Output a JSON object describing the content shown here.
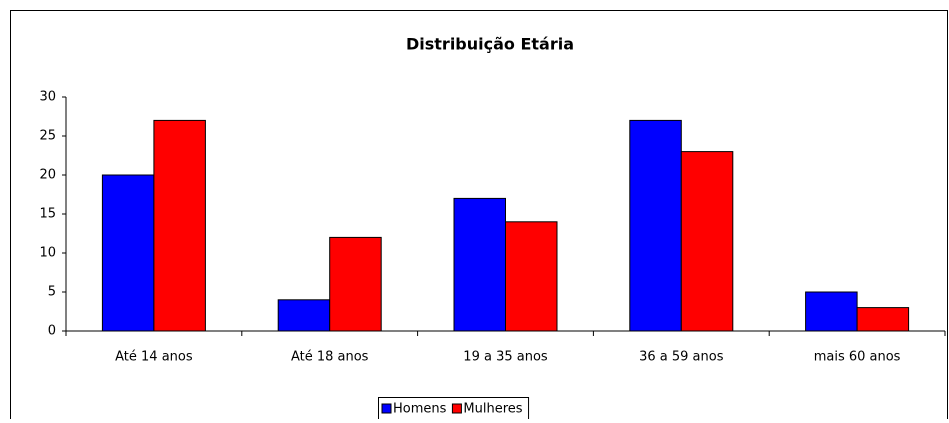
{
  "chart_data": {
    "type": "bar",
    "title": "Distribuição Etária",
    "categories": [
      "Até 14 anos",
      "Até 18 anos",
      "19 a 35 anos",
      "36 a 59 anos",
      "mais 60 anos"
    ],
    "series": [
      {
        "name": "Homens",
        "color": "#0000ff",
        "values": [
          20,
          4,
          17,
          27,
          5
        ]
      },
      {
        "name": "Mulheres",
        "color": "#ff0000",
        "values": [
          27,
          12,
          14,
          23,
          3
        ]
      }
    ],
    "ylim": [
      0,
      30
    ],
    "yticks": [
      0,
      5,
      10,
      15,
      20,
      25,
      30
    ],
    "grid": false,
    "legend": "bottom"
  }
}
